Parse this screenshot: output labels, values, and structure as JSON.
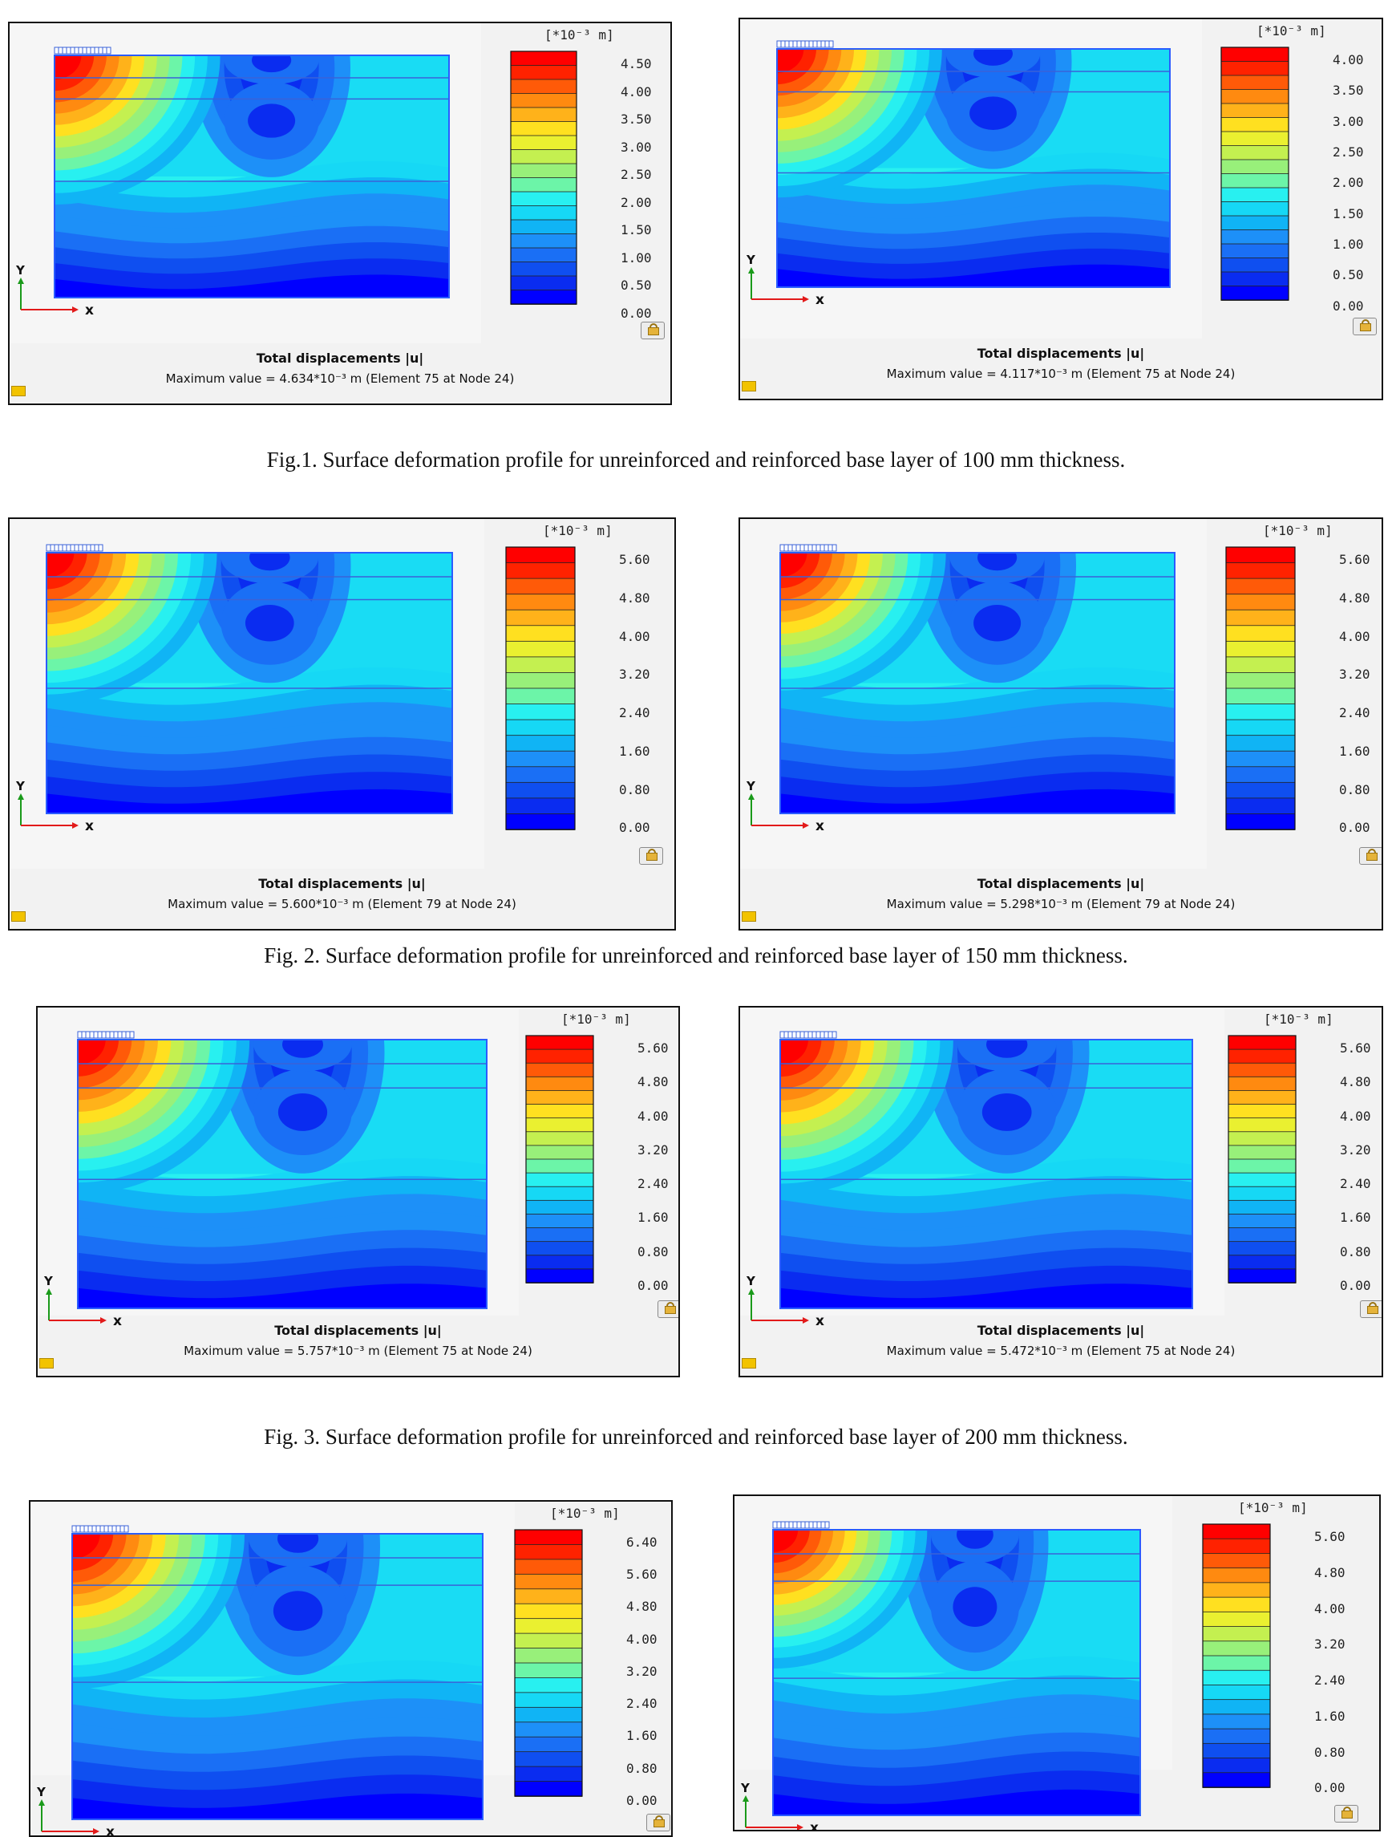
{
  "figures": [
    {
      "caption": "Fig.1. Surface deformation profile for unreinforced and reinforced base layer of 100 mm thickness.",
      "panels": [
        {
          "unit_label": "[*10⁻³ m]",
          "ticks": [
            "4.50",
            "4.00",
            "3.50",
            "3.00",
            "2.50",
            "2.00",
            "1.50",
            "1.00",
            "0.50",
            "0.00"
          ],
          "plot_title": "Total displacements |u|",
          "max_value": "Maximum value = 4.634*10⁻³ m (Element 75 at Node 24)"
        },
        {
          "unit_label": "[*10⁻³ m]",
          "ticks": [
            "4.00",
            "3.50",
            "3.00",
            "2.50",
            "2.00",
            "1.50",
            "1.00",
            "0.50",
            "0.00"
          ],
          "plot_title": "Total displacements |u|",
          "max_value": "Maximum value = 4.117*10⁻³ m (Element 75 at Node 24)"
        }
      ]
    },
    {
      "caption": "Fig. 2. Surface deformation profile for unreinforced and reinforced base layer of 150 mm thickness.",
      "panels": [
        {
          "unit_label": "[*10⁻³ m]",
          "ticks": [
            "5.60",
            "4.80",
            "4.00",
            "3.20",
            "2.40",
            "1.60",
            "0.80",
            "0.00"
          ],
          "plot_title": "Total displacements |u|",
          "max_value": "Maximum value = 5.600*10⁻³ m (Element 79 at Node 24)"
        },
        {
          "unit_label": "[*10⁻³ m]",
          "ticks": [
            "5.60",
            "4.80",
            "4.00",
            "3.20",
            "2.40",
            "1.60",
            "0.80",
            "0.00"
          ],
          "plot_title": "Total displacements |u|",
          "max_value": "Maximum value = 5.298*10⁻³ m (Element 79 at Node 24)"
        }
      ]
    },
    {
      "caption": "Fig. 3. Surface deformation profile for unreinforced and reinforced base layer of 200 mm thickness.",
      "panels": [
        {
          "unit_label": "[*10⁻³ m]",
          "ticks": [
            "5.60",
            "4.80",
            "4.00",
            "3.20",
            "2.40",
            "1.60",
            "0.80",
            "0.00"
          ],
          "plot_title": "Total displacements |u|",
          "max_value": "Maximum value = 5.757*10⁻³ m (Element 75 at Node 24)"
        },
        {
          "unit_label": "[*10⁻³ m]",
          "ticks": [
            "5.60",
            "4.80",
            "4.00",
            "3.20",
            "2.40",
            "1.60",
            "0.80",
            "0.00"
          ],
          "plot_title": "Total displacements |u|",
          "max_value": "Maximum value = 5.472*10⁻³ m (Element 75 at Node 24)"
        }
      ]
    },
    {
      "caption": "",
      "panels": [
        {
          "unit_label": "[*10⁻³ m]",
          "ticks": [
            "6.40",
            "5.60",
            "4.80",
            "4.00",
            "3.20",
            "2.40",
            "1.60",
            "0.80",
            "0.00"
          ],
          "plot_title": "",
          "max_value": ""
        },
        {
          "unit_label": "[*10⁻³ m]",
          "ticks": [
            "5.60",
            "4.80",
            "4.00",
            "3.20",
            "2.40",
            "1.60",
            "0.80",
            "0.00"
          ],
          "plot_title": "",
          "max_value": ""
        }
      ]
    }
  ],
  "axis_labels": {
    "x": "x",
    "y": "Y"
  },
  "colormap": [
    "#0000ff",
    "#0a2cf0",
    "#0f4ff0",
    "#1a6ff5",
    "#1d90f8",
    "#10b4f5",
    "#16d8f5",
    "#28f0f0",
    "#6cf5a8",
    "#98f07a",
    "#c4f050",
    "#eaf030",
    "#ffe020",
    "#ffb21a",
    "#ff8a10",
    "#ff5a08",
    "#ff2200",
    "#ff0000"
  ]
}
